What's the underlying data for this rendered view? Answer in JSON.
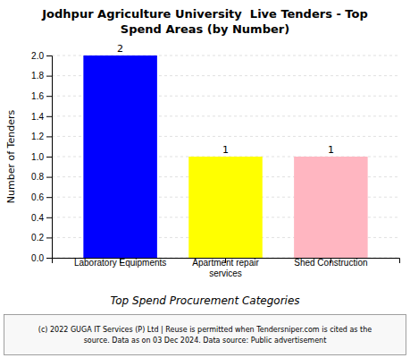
{
  "chart_data": {
    "type": "bar",
    "title": "Jodhpur Agriculture University  Live Tenders - Top\nSpend Areas (by Number)",
    "categories": [
      "Laboratory Equipments",
      "Apartment repair\nservices",
      "Shed Construction"
    ],
    "values": [
      2,
      1,
      1
    ],
    "colors": [
      "#0000FF",
      "#FFFF00",
      "#FFB6C1"
    ],
    "ylabel": "Number of Tenders",
    "xlabel": "Top Spend Procurement Categories",
    "ylim": [
      0,
      2.0
    ],
    "yticks": [
      {
        "value": 0.0,
        "label": "0.0"
      },
      0.2,
      0.4,
      0.6,
      0.8,
      {
        "value": 1.0,
        "label": "1.0"
      },
      1.2,
      1.4,
      1.6,
      1.8,
      {
        "value": 2.0,
        "label": "2.0"
      }
    ],
    "grid": true,
    "data_labels": true,
    "footnote": "(c) 2022 GUGA IT Services (P) Ltd | Reuse is permitted when Tendersniper.com is cited as the\nsource. Data as on 03 Dec 2024. Data source: Public advertisement"
  }
}
